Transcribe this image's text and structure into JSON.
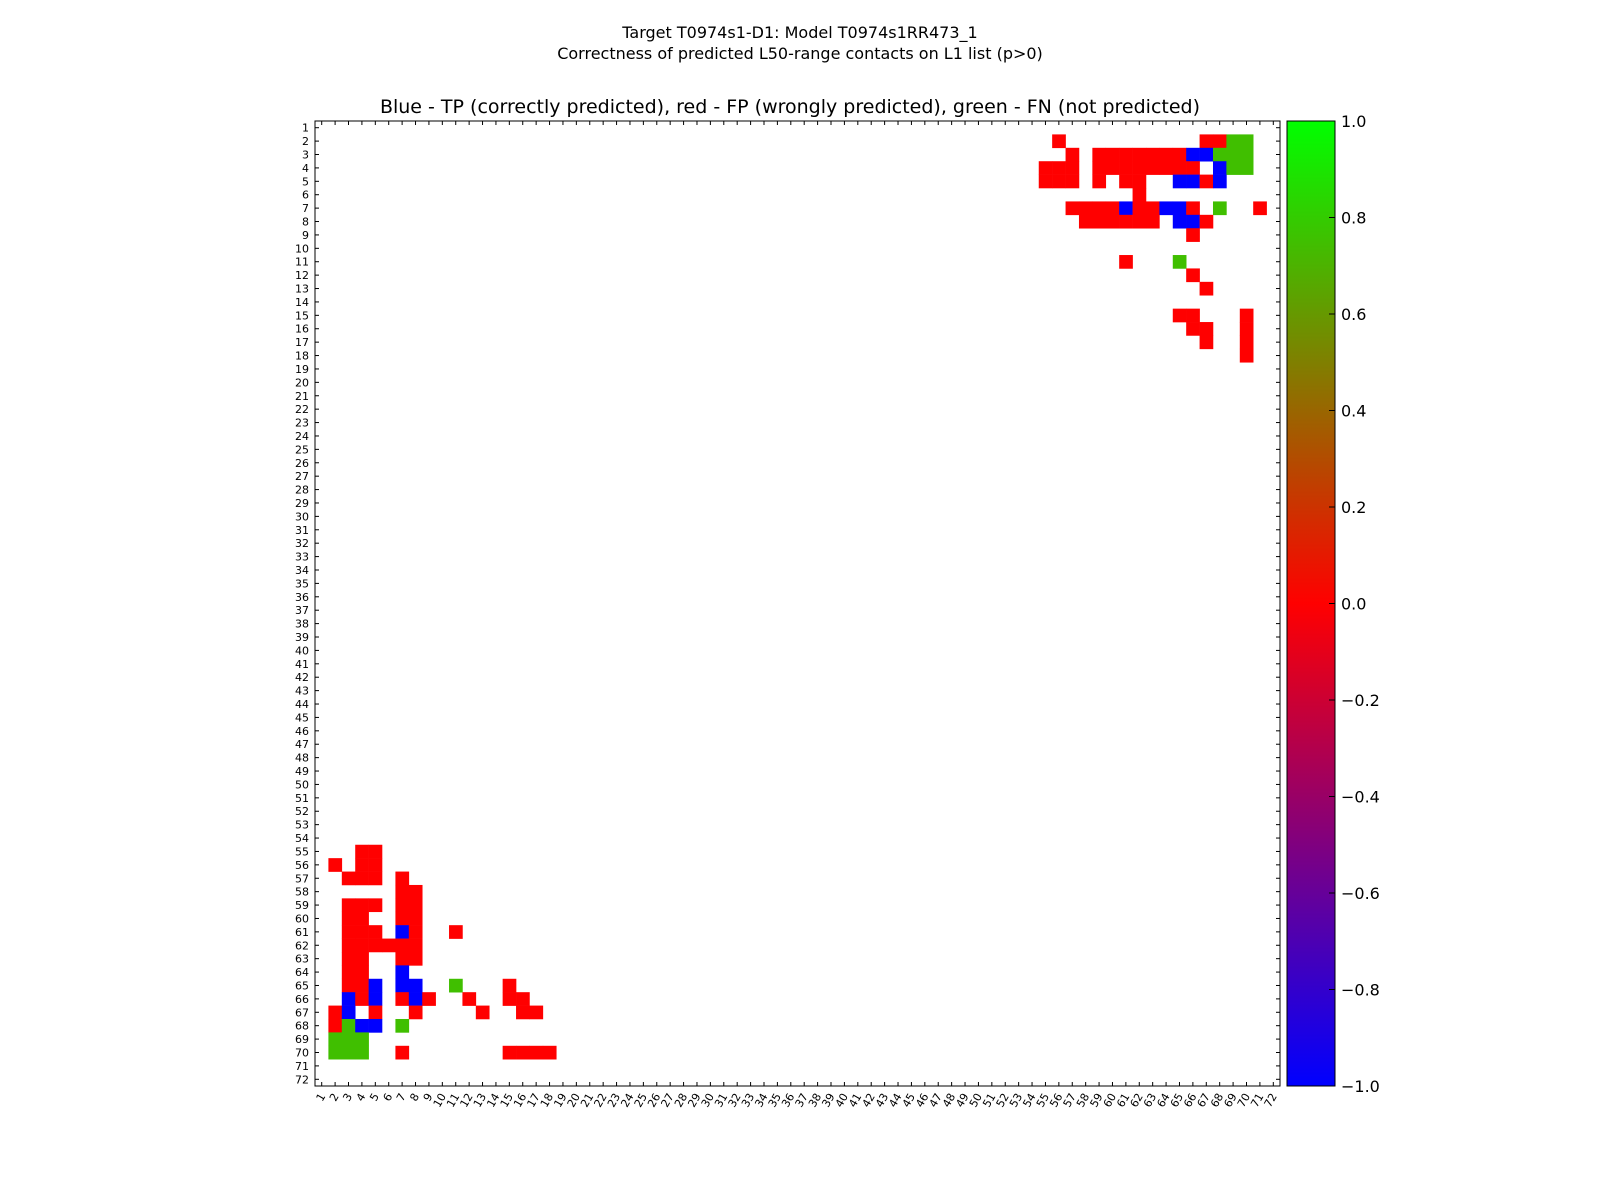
{
  "chart_data": {
    "type": "heatmap",
    "suptitle_line1": "Target T0974s1-D1: Model T0974s1RR473_1",
    "suptitle_line2": "Correctness of predicted L50-range contacts on L1 list (p>0)",
    "title": "Blue - TP (correctly predicted), red - FP (wrongly predicted), green - FN (not predicted)",
    "n_residues": 72,
    "value_meaning": {
      "-1": "TP (blue)",
      "0": "FP (red)",
      "0.75": "FN (green)"
    },
    "colormap": {
      "stops": [
        [
          -1.0,
          "#0000ff"
        ],
        [
          0.0,
          "#ff0000"
        ],
        [
          1.0,
          "#00ff00"
        ]
      ]
    },
    "colorbar": {
      "range": [
        -1.0,
        1.0
      ],
      "ticks": [
        "1.0",
        "0.8",
        "0.6",
        "0.4",
        "0.2",
        "0.0",
        "−0.2",
        "−0.4",
        "−0.6",
        "−0.8",
        "−1.0"
      ]
    },
    "cells": [
      {
        "row": 2,
        "col": 56,
        "v": 0
      },
      {
        "row": 2,
        "col": 67,
        "v": 0
      },
      {
        "row": 2,
        "col": 68,
        "v": 0
      },
      {
        "row": 2,
        "col": 69,
        "v": 0.75
      },
      {
        "row": 2,
        "col": 70,
        "v": 0.75
      },
      {
        "row": 3,
        "col": 57,
        "v": 0
      },
      {
        "row": 3,
        "col": 59,
        "v": 0
      },
      {
        "row": 3,
        "col": 60,
        "v": 0
      },
      {
        "row": 3,
        "col": 61,
        "v": 0
      },
      {
        "row": 3,
        "col": 62,
        "v": 0
      },
      {
        "row": 3,
        "col": 63,
        "v": 0
      },
      {
        "row": 3,
        "col": 64,
        "v": 0
      },
      {
        "row": 3,
        "col": 65,
        "v": 0
      },
      {
        "row": 3,
        "col": 66,
        "v": -1
      },
      {
        "row": 3,
        "col": 67,
        "v": -1
      },
      {
        "row": 3,
        "col": 68,
        "v": 0.75
      },
      {
        "row": 3,
        "col": 69,
        "v": 0.75
      },
      {
        "row": 3,
        "col": 70,
        "v": 0.75
      },
      {
        "row": 4,
        "col": 55,
        "v": 0
      },
      {
        "row": 4,
        "col": 56,
        "v": 0
      },
      {
        "row": 4,
        "col": 57,
        "v": 0
      },
      {
        "row": 4,
        "col": 59,
        "v": 0
      },
      {
        "row": 4,
        "col": 60,
        "v": 0
      },
      {
        "row": 4,
        "col": 61,
        "v": 0
      },
      {
        "row": 4,
        "col": 62,
        "v": 0
      },
      {
        "row": 4,
        "col": 63,
        "v": 0
      },
      {
        "row": 4,
        "col": 64,
        "v": 0
      },
      {
        "row": 4,
        "col": 65,
        "v": 0
      },
      {
        "row": 4,
        "col": 66,
        "v": 0
      },
      {
        "row": 4,
        "col": 68,
        "v": -1
      },
      {
        "row": 4,
        "col": 69,
        "v": 0.75
      },
      {
        "row": 4,
        "col": 70,
        "v": 0.75
      },
      {
        "row": 5,
        "col": 55,
        "v": 0
      },
      {
        "row": 5,
        "col": 56,
        "v": 0
      },
      {
        "row": 5,
        "col": 57,
        "v": 0
      },
      {
        "row": 5,
        "col": 59,
        "v": 0
      },
      {
        "row": 5,
        "col": 61,
        "v": 0
      },
      {
        "row": 5,
        "col": 62,
        "v": 0
      },
      {
        "row": 5,
        "col": 65,
        "v": -1
      },
      {
        "row": 5,
        "col": 66,
        "v": -1
      },
      {
        "row": 5,
        "col": 67,
        "v": 0
      },
      {
        "row": 5,
        "col": 68,
        "v": -1
      },
      {
        "row": 6,
        "col": 62,
        "v": 0
      },
      {
        "row": 7,
        "col": 57,
        "v": 0
      },
      {
        "row": 7,
        "col": 58,
        "v": 0
      },
      {
        "row": 7,
        "col": 59,
        "v": 0
      },
      {
        "row": 7,
        "col": 60,
        "v": 0
      },
      {
        "row": 7,
        "col": 61,
        "v": -1
      },
      {
        "row": 7,
        "col": 62,
        "v": 0
      },
      {
        "row": 7,
        "col": 63,
        "v": 0
      },
      {
        "row": 7,
        "col": 64,
        "v": -1
      },
      {
        "row": 7,
        "col": 65,
        "v": -1
      },
      {
        "row": 7,
        "col": 66,
        "v": 0
      },
      {
        "row": 7,
        "col": 68,
        "v": 0.75
      },
      {
        "row": 7,
        "col": 71,
        "v": 0
      },
      {
        "row": 8,
        "col": 58,
        "v": 0
      },
      {
        "row": 8,
        "col": 59,
        "v": 0
      },
      {
        "row": 8,
        "col": 60,
        "v": 0
      },
      {
        "row": 8,
        "col": 61,
        "v": 0
      },
      {
        "row": 8,
        "col": 62,
        "v": 0
      },
      {
        "row": 8,
        "col": 63,
        "v": 0
      },
      {
        "row": 8,
        "col": 65,
        "v": -1
      },
      {
        "row": 8,
        "col": 66,
        "v": -1
      },
      {
        "row": 8,
        "col": 67,
        "v": 0
      },
      {
        "row": 9,
        "col": 66,
        "v": 0
      },
      {
        "row": 11,
        "col": 61,
        "v": 0
      },
      {
        "row": 11,
        "col": 65,
        "v": 0.75
      },
      {
        "row": 12,
        "col": 66,
        "v": 0
      },
      {
        "row": 13,
        "col": 67,
        "v": 0
      },
      {
        "row": 15,
        "col": 65,
        "v": 0
      },
      {
        "row": 15,
        "col": 66,
        "v": 0
      },
      {
        "row": 15,
        "col": 70,
        "v": 0
      },
      {
        "row": 16,
        "col": 66,
        "v": 0
      },
      {
        "row": 16,
        "col": 67,
        "v": 0
      },
      {
        "row": 16,
        "col": 70,
        "v": 0
      },
      {
        "row": 17,
        "col": 67,
        "v": 0
      },
      {
        "row": 17,
        "col": 70,
        "v": 0
      },
      {
        "row": 18,
        "col": 70,
        "v": 0
      },
      {
        "row": 55,
        "col": 4,
        "v": 0
      },
      {
        "row": 55,
        "col": 5,
        "v": 0
      },
      {
        "row": 56,
        "col": 2,
        "v": 0
      },
      {
        "row": 56,
        "col": 4,
        "v": 0
      },
      {
        "row": 56,
        "col": 5,
        "v": 0
      },
      {
        "row": 57,
        "col": 3,
        "v": 0
      },
      {
        "row": 57,
        "col": 4,
        "v": 0
      },
      {
        "row": 57,
        "col": 5,
        "v": 0
      },
      {
        "row": 57,
        "col": 7,
        "v": 0
      },
      {
        "row": 58,
        "col": 7,
        "v": 0
      },
      {
        "row": 58,
        "col": 8,
        "v": 0
      },
      {
        "row": 59,
        "col": 3,
        "v": 0
      },
      {
        "row": 59,
        "col": 4,
        "v": 0
      },
      {
        "row": 59,
        "col": 5,
        "v": 0
      },
      {
        "row": 59,
        "col": 7,
        "v": 0
      },
      {
        "row": 59,
        "col": 8,
        "v": 0
      },
      {
        "row": 60,
        "col": 3,
        "v": 0
      },
      {
        "row": 60,
        "col": 4,
        "v": 0
      },
      {
        "row": 60,
        "col": 7,
        "v": 0
      },
      {
        "row": 60,
        "col": 8,
        "v": 0
      },
      {
        "row": 61,
        "col": 3,
        "v": 0
      },
      {
        "row": 61,
        "col": 4,
        "v": 0
      },
      {
        "row": 61,
        "col": 5,
        "v": 0
      },
      {
        "row": 61,
        "col": 7,
        "v": -1
      },
      {
        "row": 61,
        "col": 8,
        "v": 0
      },
      {
        "row": 61,
        "col": 11,
        "v": 0
      },
      {
        "row": 62,
        "col": 3,
        "v": 0
      },
      {
        "row": 62,
        "col": 4,
        "v": 0
      },
      {
        "row": 62,
        "col": 5,
        "v": 0
      },
      {
        "row": 62,
        "col": 6,
        "v": 0
      },
      {
        "row": 62,
        "col": 7,
        "v": 0
      },
      {
        "row": 62,
        "col": 8,
        "v": 0
      },
      {
        "row": 63,
        "col": 3,
        "v": 0
      },
      {
        "row": 63,
        "col": 4,
        "v": 0
      },
      {
        "row": 63,
        "col": 7,
        "v": 0
      },
      {
        "row": 63,
        "col": 8,
        "v": 0
      },
      {
        "row": 64,
        "col": 3,
        "v": 0
      },
      {
        "row": 64,
        "col": 4,
        "v": 0
      },
      {
        "row": 64,
        "col": 7,
        "v": -1
      },
      {
        "row": 65,
        "col": 3,
        "v": 0
      },
      {
        "row": 65,
        "col": 4,
        "v": 0
      },
      {
        "row": 65,
        "col": 5,
        "v": -1
      },
      {
        "row": 65,
        "col": 7,
        "v": -1
      },
      {
        "row": 65,
        "col": 8,
        "v": -1
      },
      {
        "row": 65,
        "col": 11,
        "v": 0.75
      },
      {
        "row": 65,
        "col": 15,
        "v": 0
      },
      {
        "row": 66,
        "col": 3,
        "v": -1
      },
      {
        "row": 66,
        "col": 4,
        "v": 0
      },
      {
        "row": 66,
        "col": 5,
        "v": -1
      },
      {
        "row": 66,
        "col": 7,
        "v": 0
      },
      {
        "row": 66,
        "col": 8,
        "v": -1
      },
      {
        "row": 66,
        "col": 9,
        "v": 0
      },
      {
        "row": 66,
        "col": 12,
        "v": 0
      },
      {
        "row": 66,
        "col": 15,
        "v": 0
      },
      {
        "row": 66,
        "col": 16,
        "v": 0
      },
      {
        "row": 67,
        "col": 2,
        "v": 0
      },
      {
        "row": 67,
        "col": 3,
        "v": -1
      },
      {
        "row": 67,
        "col": 5,
        "v": 0
      },
      {
        "row": 67,
        "col": 8,
        "v": 0
      },
      {
        "row": 67,
        "col": 13,
        "v": 0
      },
      {
        "row": 67,
        "col": 16,
        "v": 0
      },
      {
        "row": 67,
        "col": 17,
        "v": 0
      },
      {
        "row": 68,
        "col": 2,
        "v": 0
      },
      {
        "row": 68,
        "col": 3,
        "v": 0.75
      },
      {
        "row": 68,
        "col": 4,
        "v": -1
      },
      {
        "row": 68,
        "col": 5,
        "v": -1
      },
      {
        "row": 68,
        "col": 7,
        "v": 0.75
      },
      {
        "row": 69,
        "col": 2,
        "v": 0.75
      },
      {
        "row": 69,
        "col": 3,
        "v": 0.75
      },
      {
        "row": 69,
        "col": 4,
        "v": 0.75
      },
      {
        "row": 70,
        "col": 2,
        "v": 0.75
      },
      {
        "row": 70,
        "col": 3,
        "v": 0.75
      },
      {
        "row": 70,
        "col": 4,
        "v": 0.75
      },
      {
        "row": 70,
        "col": 7,
        "v": 0
      },
      {
        "row": 70,
        "col": 15,
        "v": 0
      },
      {
        "row": 70,
        "col": 16,
        "v": 0
      },
      {
        "row": 70,
        "col": 17,
        "v": 0
      },
      {
        "row": 70,
        "col": 18,
        "v": 0
      }
    ]
  }
}
